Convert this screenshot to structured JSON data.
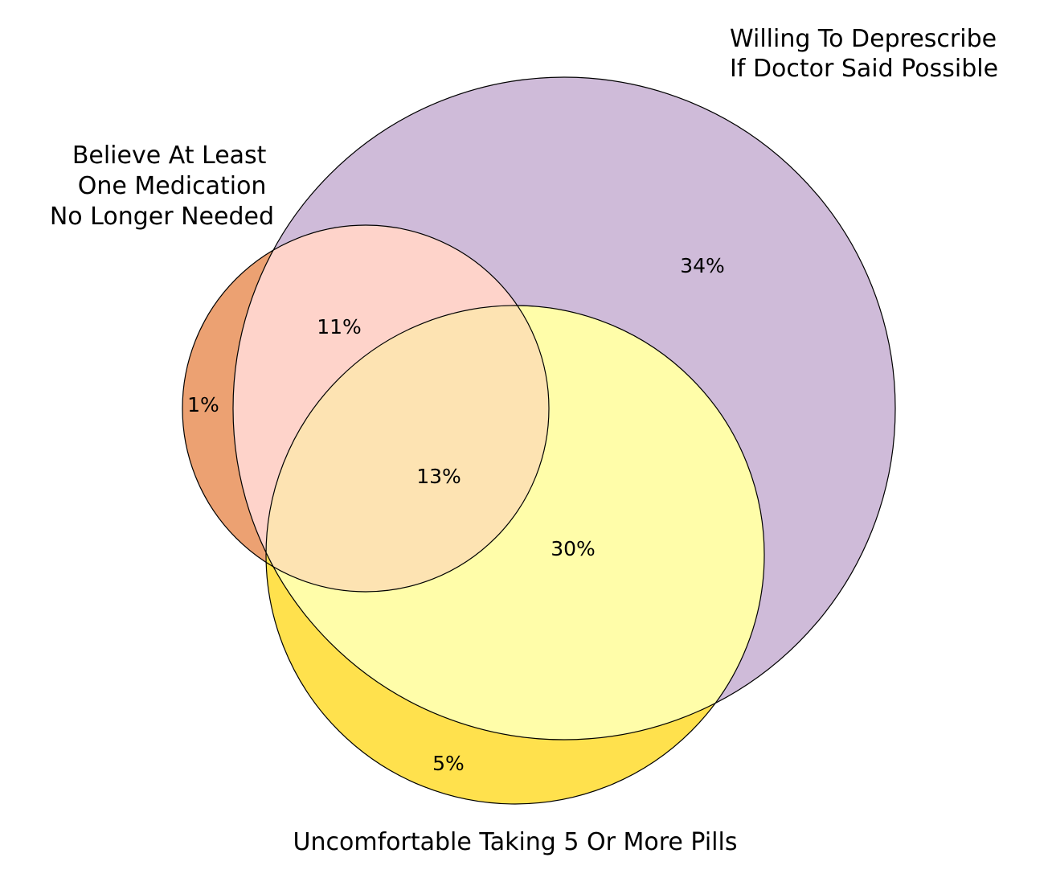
{
  "venn": {
    "sets": [
      {
        "id": "willing",
        "label_lines": [
          "Willing To Deprescribe",
          "If Doctor Said Possible"
        ],
        "color": "#cfbbd9"
      },
      {
        "id": "believe",
        "label_lines": [
          "Believe At Least",
          "One Medication",
          "No Longer Needed"
        ],
        "color": "#eca172"
      },
      {
        "id": "uncomfortable",
        "label_lines": [
          "Uncomfortable Taking 5 Or More Pills"
        ],
        "color": "#ffe14d"
      }
    ],
    "regions": [
      {
        "sets": [
          "willing"
        ],
        "label": "34%",
        "color": "#cfbbd9"
      },
      {
        "sets": [
          "believe"
        ],
        "label": "1%",
        "color": "#eca172"
      },
      {
        "sets": [
          "uncomfortable"
        ],
        "label": "5%",
        "color": "#ffe14d"
      },
      {
        "sets": [
          "willing",
          "believe"
        ],
        "label": "11%",
        "color": "#fed3ca"
      },
      {
        "sets": [
          "willing",
          "uncomfortable"
        ],
        "label": "30%",
        "color": "#fffda9"
      },
      {
        "sets": [
          "willing",
          "believe",
          "uncomfortable"
        ],
        "label": "13%",
        "color": "#fde3b2"
      }
    ]
  }
}
